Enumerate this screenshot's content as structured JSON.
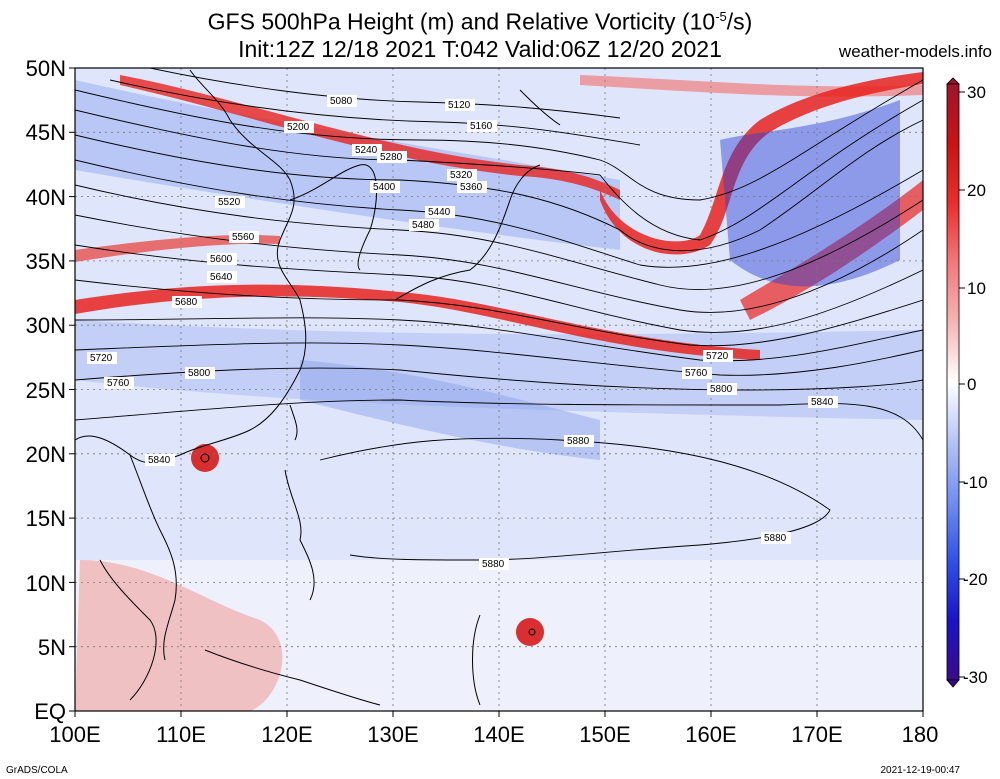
{
  "header": {
    "title_line1": "GFS 500hPa Height (m) and Relative Vorticity (10",
    "title_line1_exp": "-5",
    "title_line1_end": "/s)",
    "title_line2": "Init:12Z 12/18 2021 T:042 Valid:06Z 12/20 2021",
    "site": "weather-models.info"
  },
  "axes": {
    "x_ticks": [
      "100E",
      "110E",
      "120E",
      "130E",
      "140E",
      "150E",
      "160E",
      "170E",
      "180"
    ],
    "y_ticks": [
      "50N",
      "45N",
      "40N",
      "35N",
      "30N",
      "25N",
      "20N",
      "15N",
      "10N",
      "5N",
      "EQ"
    ]
  },
  "colorbar": {
    "ticks": [
      "30",
      "20",
      "10",
      "0",
      "-10",
      "-20",
      "-30"
    ],
    "colors": [
      "#3a0a8a",
      "#1a14c8",
      "#2e52e8",
      "#6f8ff2",
      "#b4c4f8",
      "#ffffff",
      "#f7b4b4",
      "#f47878",
      "#ec2c2c",
      "#c81414",
      "#a01428"
    ]
  },
  "contour_labels": [
    "5080",
    "5120",
    "5160",
    "5200",
    "5240",
    "5280",
    "5320",
    "5360",
    "5400",
    "5440",
    "5480",
    "5520",
    "5560",
    "5600",
    "5640",
    "5680",
    "5720",
    "5760",
    "5800",
    "5840",
    "5880"
  ],
  "footer": {
    "left": "GrADS/COLA",
    "right": "2021-12-19-00:47"
  }
}
